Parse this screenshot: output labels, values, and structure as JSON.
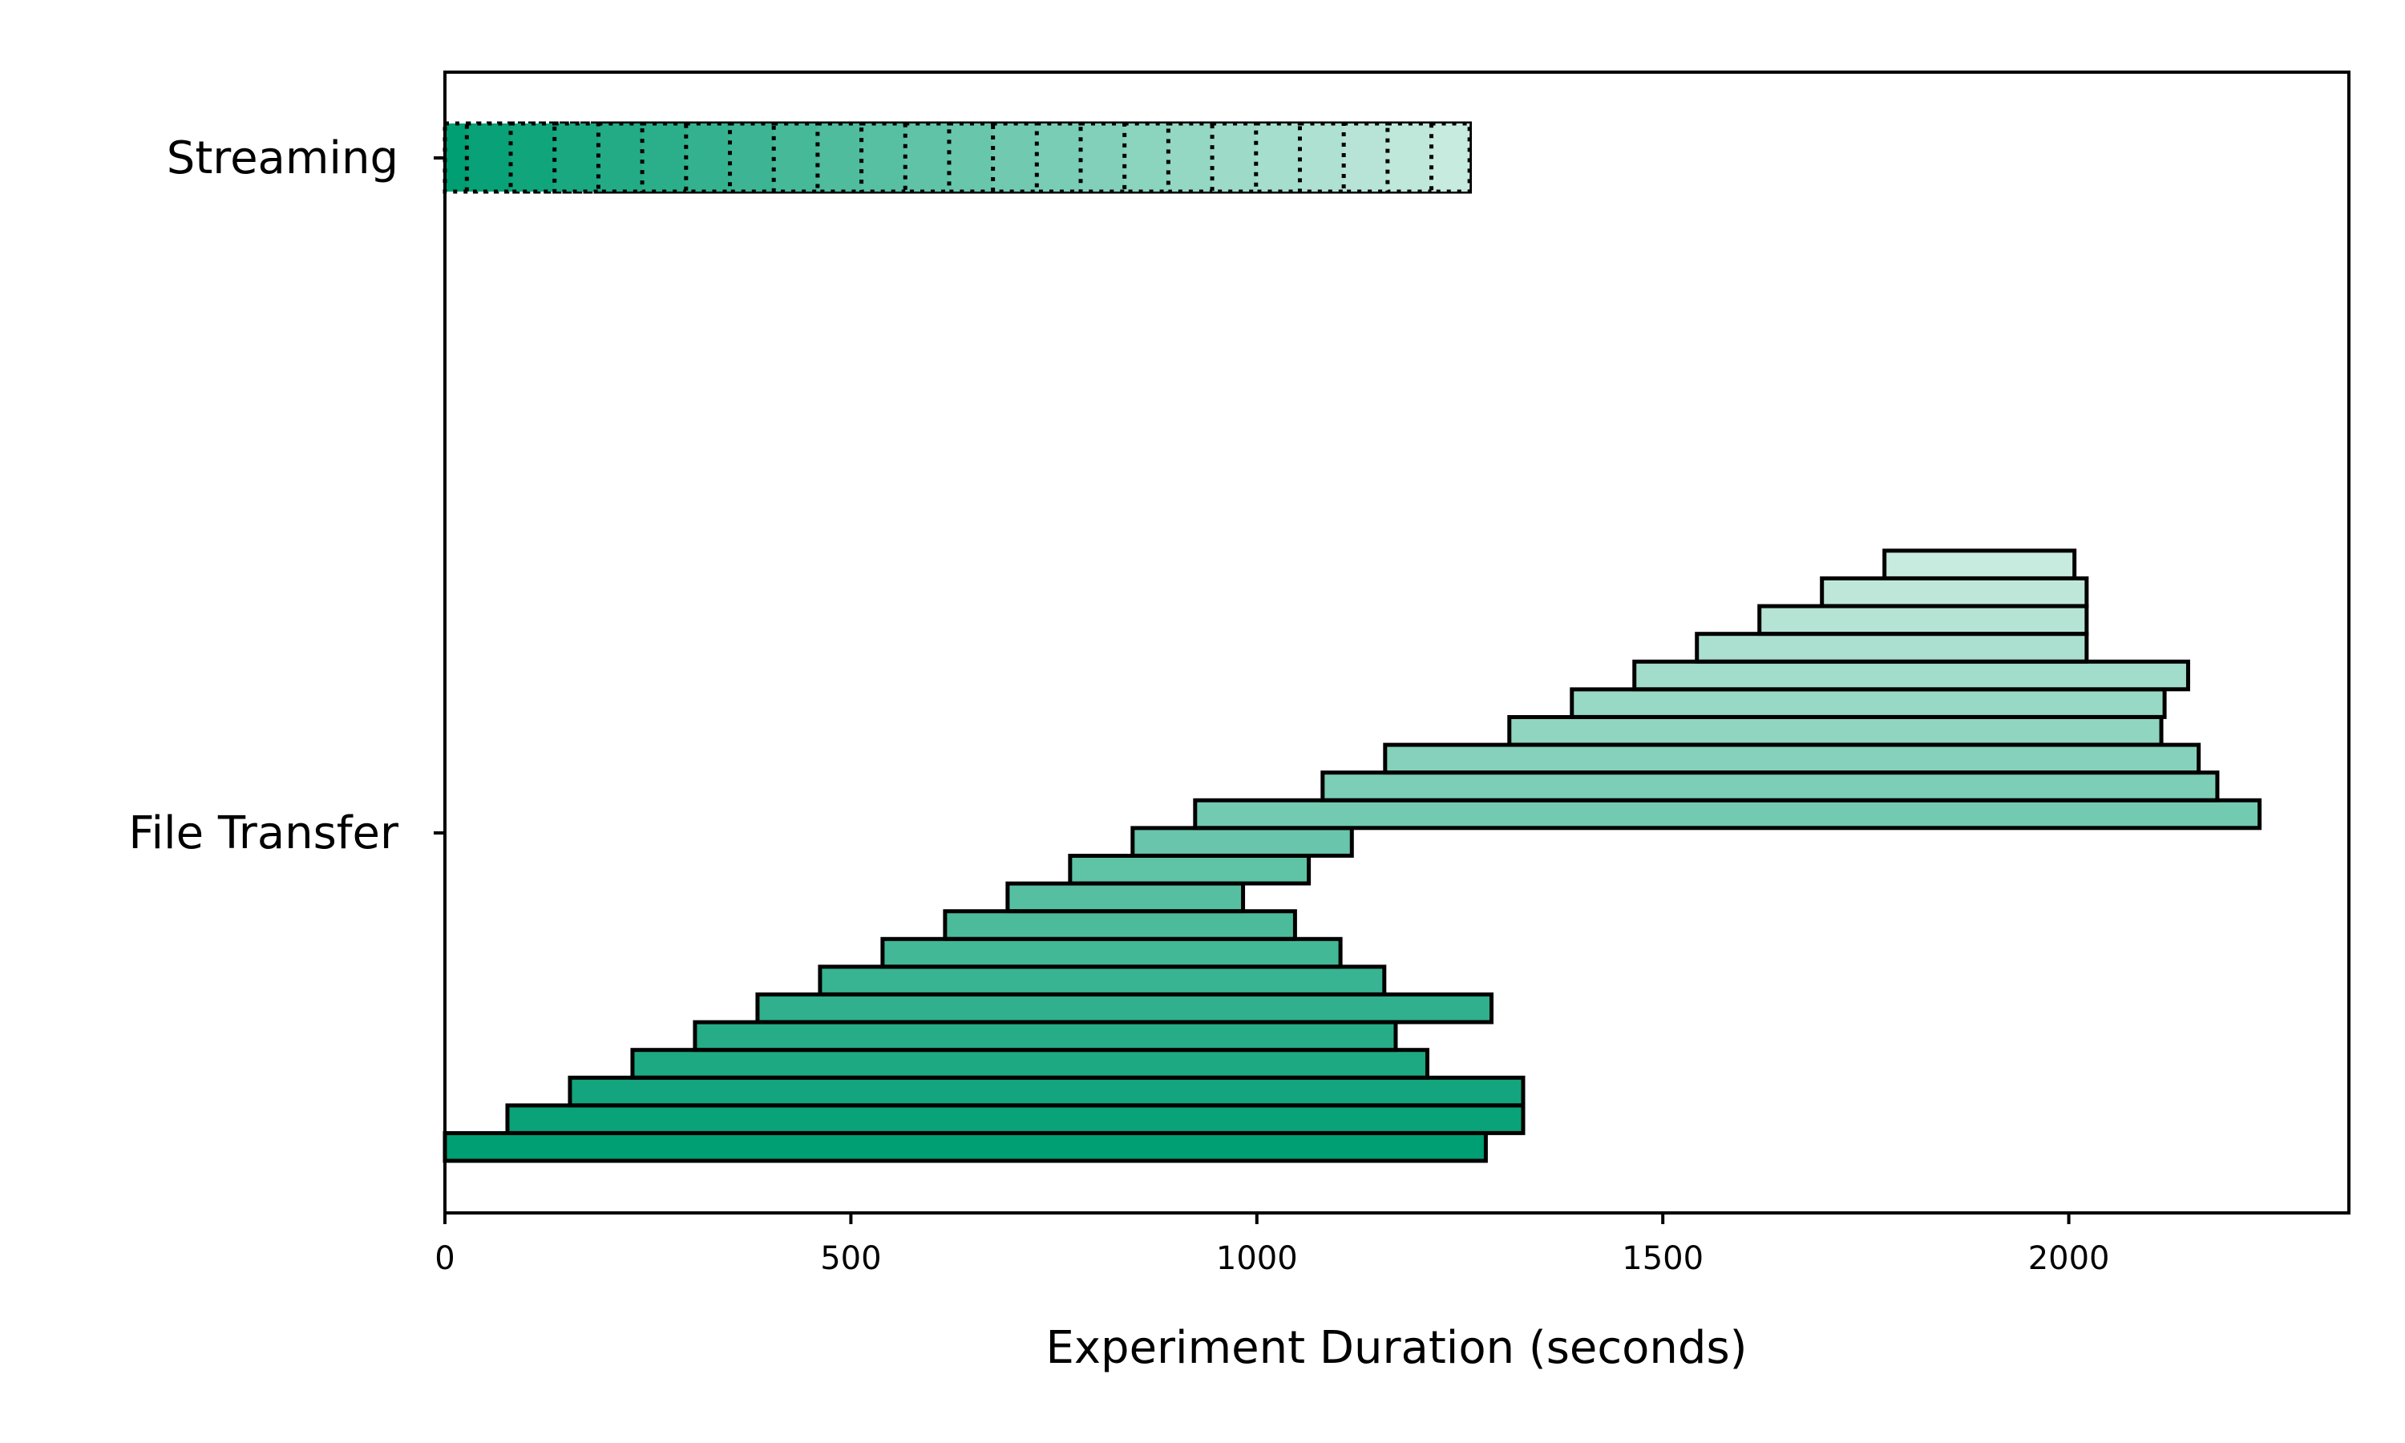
{
  "chart_data": {
    "type": "bar",
    "orientation": "horizontal",
    "title": "",
    "xlabel": "Experiment Duration (seconds)",
    "ylabel": "",
    "xlim": [
      0,
      2345
    ],
    "xticks": [
      0,
      500,
      1000,
      1500,
      2000
    ],
    "grid": false,
    "categories": [
      "File Transfer",
      "Streaming"
    ],
    "colors": {
      "start": "#009E73",
      "end": "#C8EBDF",
      "edge": "#000000"
    },
    "series": [
      {
        "category": "File Transfer",
        "style": "solid",
        "bars": [
          {
            "start": 0,
            "end": 1282
          },
          {
            "start": 77,
            "end": 1328
          },
          {
            "start": 154,
            "end": 1328
          },
          {
            "start": 231,
            "end": 1210
          },
          {
            "start": 308,
            "end": 1171
          },
          {
            "start": 385,
            "end": 1289
          },
          {
            "start": 462,
            "end": 1157
          },
          {
            "start": 539,
            "end": 1103
          },
          {
            "start": 616,
            "end": 1047
          },
          {
            "start": 693,
            "end": 983
          },
          {
            "start": 770,
            "end": 1064
          },
          {
            "start": 847,
            "end": 1117
          },
          {
            "start": 924,
            "end": 2235
          },
          {
            "start": 1081,
            "end": 2183
          },
          {
            "start": 1158,
            "end": 2160
          },
          {
            "start": 1311,
            "end": 2114
          },
          {
            "start": 1388,
            "end": 2118
          },
          {
            "start": 1465,
            "end": 2147
          },
          {
            "start": 1542,
            "end": 2022
          },
          {
            "start": 1619,
            "end": 2022
          },
          {
            "start": 1696,
            "end": 2022
          },
          {
            "start": 1773,
            "end": 2007
          }
        ]
      },
      {
        "category": "Streaming",
        "style": "dotted",
        "bars": [
          {
            "start": 0,
            "end": 1262
          },
          {
            "start": 27,
            "end": 1262
          },
          {
            "start": 81,
            "end": 1262
          },
          {
            "start": 135,
            "end": 1262
          },
          {
            "start": 189,
            "end": 1262
          },
          {
            "start": 243,
            "end": 1262
          },
          {
            "start": 297,
            "end": 1262
          },
          {
            "start": 351,
            "end": 1262
          },
          {
            "start": 405,
            "end": 1262
          },
          {
            "start": 459,
            "end": 1262
          },
          {
            "start": 513,
            "end": 1262
          },
          {
            "start": 567,
            "end": 1262
          },
          {
            "start": 621,
            "end": 1262
          },
          {
            "start": 675,
            "end": 1262
          },
          {
            "start": 729,
            "end": 1262
          },
          {
            "start": 783,
            "end": 1262
          },
          {
            "start": 837,
            "end": 1262
          },
          {
            "start": 891,
            "end": 1262
          },
          {
            "start": 945,
            "end": 1262
          },
          {
            "start": 999,
            "end": 1262
          },
          {
            "start": 1053,
            "end": 1262
          },
          {
            "start": 1107,
            "end": 1262
          },
          {
            "start": 1161,
            "end": 1262
          },
          {
            "start": 1215,
            "end": 1262
          }
        ]
      }
    ]
  }
}
